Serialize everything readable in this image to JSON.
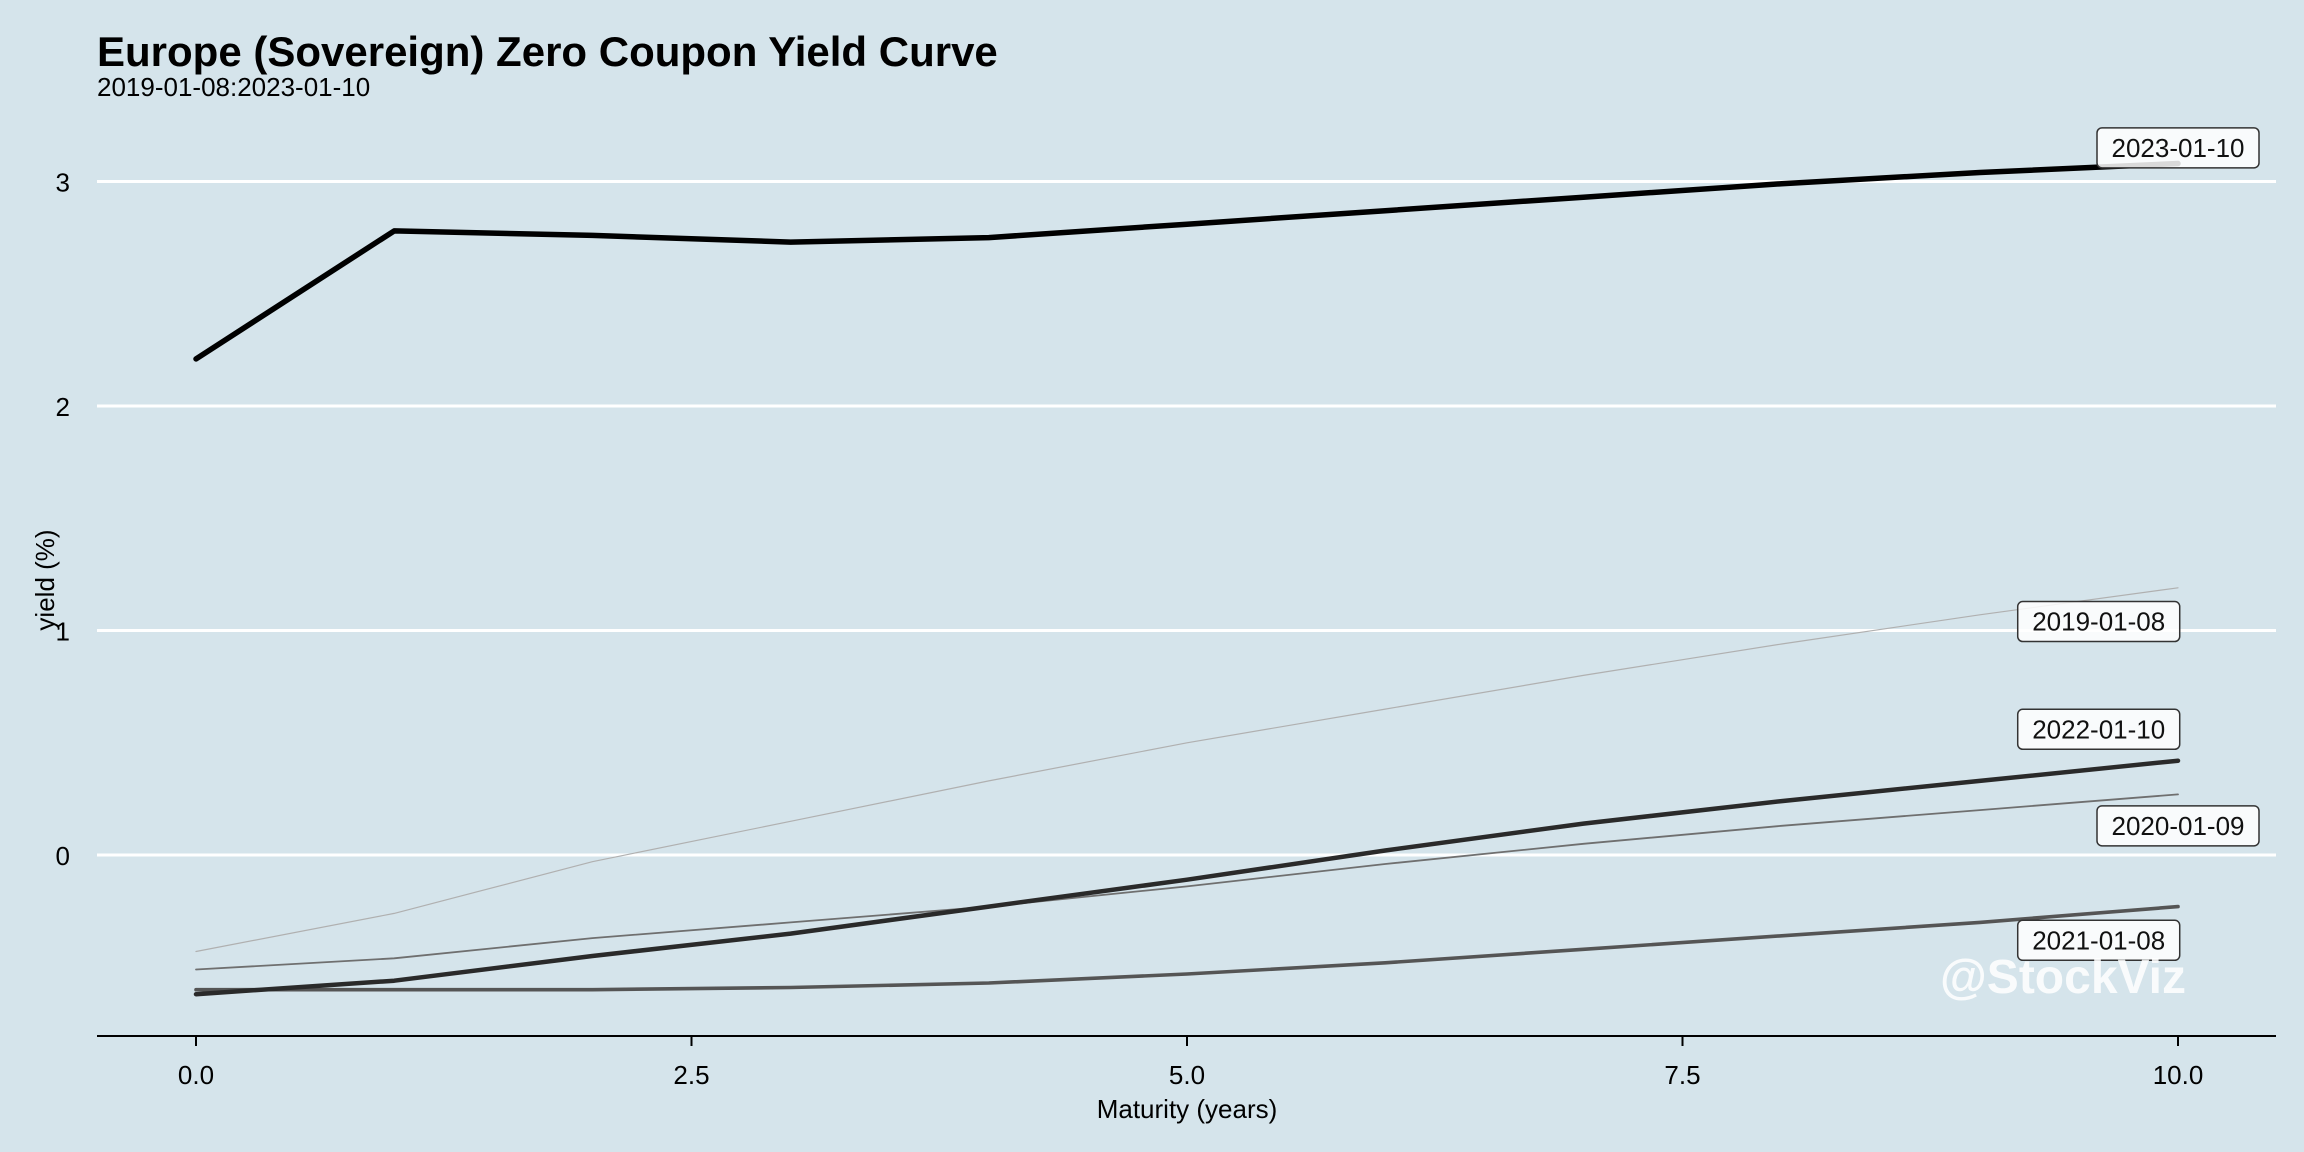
{
  "header": {
    "title": "Europe (Sovereign) Zero Coupon Yield Curve",
    "subtitle": "2019-01-08:2023-01-10"
  },
  "watermark": "@StockViz",
  "colors": {
    "background": "#d5e4eb",
    "grid": "#ffffff"
  },
  "chart_data": {
    "type": "line",
    "title": "Europe (Sovereign) Zero Coupon Yield Curve",
    "subtitle": "2019-01-08:2023-01-10",
    "xlabel": "Maturity (years)",
    "ylabel": "yield (%)",
    "xlim": [
      -0.5,
      10.5
    ],
    "ylim": [
      -0.82,
      3.35
    ],
    "xticks": [
      "0.0",
      "2.5",
      "5.0",
      "7.5",
      "10.0"
    ],
    "yticks": [
      "0",
      "1",
      "2",
      "3"
    ],
    "grid": "horizontal",
    "legend": "direct labels at line ends",
    "series": [
      {
        "name": "2019-01-08",
        "color": "#b0b0b0",
        "width": 1.2,
        "x": [
          0,
          1,
          2,
          3,
          4,
          5,
          6,
          7,
          8,
          9,
          10
        ],
        "y": [
          -0.43,
          -0.26,
          -0.03,
          0.15,
          0.33,
          0.5,
          0.65,
          0.8,
          0.94,
          1.07,
          1.19
        ]
      },
      {
        "name": "2020-01-09",
        "color": "#6f6f6f",
        "width": 1.8,
        "x": [
          0,
          1,
          2,
          3,
          4,
          5,
          6,
          7,
          8,
          9,
          10
        ],
        "y": [
          -0.51,
          -0.46,
          -0.37,
          -0.3,
          -0.23,
          -0.14,
          -0.04,
          0.05,
          0.13,
          0.2,
          0.27
        ]
      },
      {
        "name": "2021-01-08",
        "color": "#555555",
        "width": 3.6,
        "x": [
          0,
          1,
          2,
          3,
          4,
          5,
          6,
          7,
          8,
          9,
          10
        ],
        "y": [
          -0.6,
          -0.6,
          -0.6,
          -0.59,
          -0.57,
          -0.53,
          -0.48,
          -0.42,
          -0.36,
          -0.3,
          -0.23
        ]
      },
      {
        "name": "2022-01-10",
        "color": "#2a2a2a",
        "width": 4.5,
        "x": [
          0,
          1,
          2,
          3,
          4,
          5,
          6,
          7,
          8,
          9,
          10
        ],
        "y": [
          -0.62,
          -0.56,
          -0.45,
          -0.35,
          -0.23,
          -0.11,
          0.02,
          0.14,
          0.24,
          0.33,
          0.42
        ]
      },
      {
        "name": "2023-01-10",
        "color": "#000000",
        "width": 5.5,
        "x": [
          0,
          1,
          2,
          3,
          4,
          5,
          6,
          7,
          8,
          9,
          10
        ],
        "y": [
          2.21,
          2.78,
          2.76,
          2.73,
          2.75,
          2.81,
          2.87,
          2.93,
          2.99,
          3.04,
          3.08
        ]
      }
    ],
    "labels": [
      {
        "text": "2023-01-10",
        "x": 10.0,
        "y": 3.15
      },
      {
        "text": "2019-01-08",
        "x": 9.6,
        "y": 1.04
      },
      {
        "text": "2022-01-10",
        "x": 9.6,
        "y": 0.56
      },
      {
        "text": "2020-01-09",
        "x": 10.0,
        "y": 0.13
      },
      {
        "text": "2021-01-08",
        "x": 9.6,
        "y": -0.38
      }
    ]
  }
}
